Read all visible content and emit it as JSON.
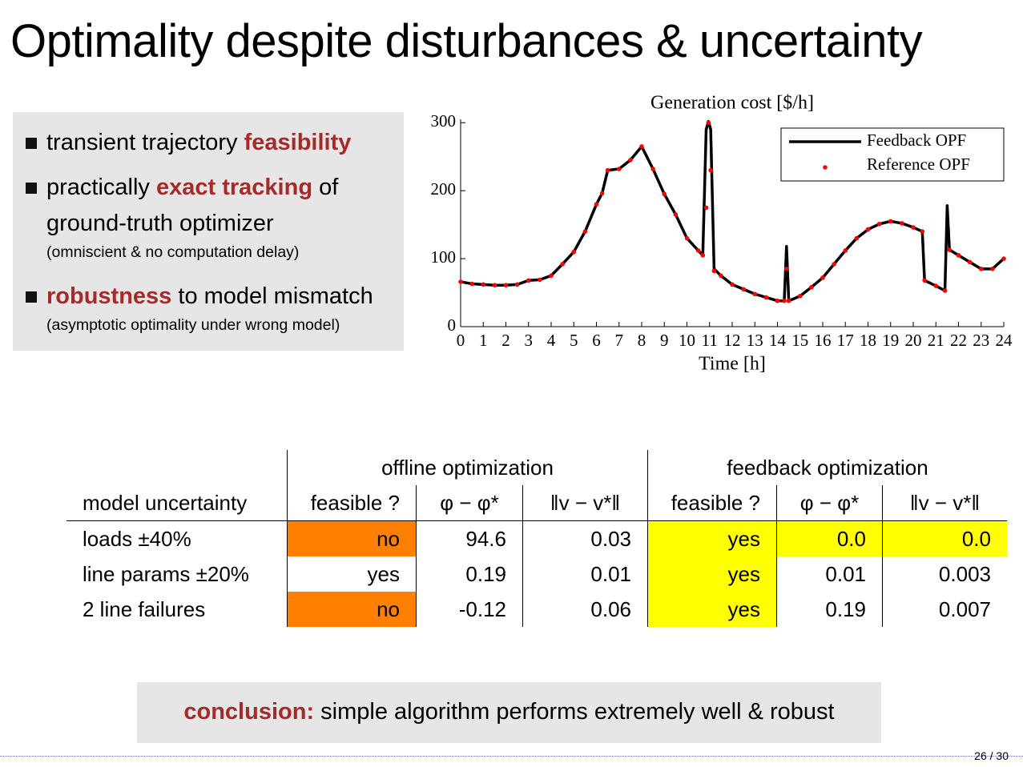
{
  "title": "Optimality despite disturbances & uncertainty",
  "bullets": [
    {
      "parts": [
        "transient trajectory ",
        "feasibility"
      ]
    },
    {
      "parts": [
        "practically ",
        "exact tracking",
        " of",
        "ground-truth optimizer"
      ],
      "note": "(omniscient & no computation delay)"
    },
    {
      "parts": [
        "robustness",
        " to model mismatch"
      ],
      "note": "(asymptotic optimality under wrong model)"
    }
  ],
  "chart_data": {
    "type": "line",
    "title": "Generation cost [$/h]",
    "xlabel": "Time [h]",
    "x": [
      0,
      0.5,
      1,
      1.5,
      2,
      2.5,
      3,
      3.5,
      4,
      4.5,
      5,
      5.5,
      6,
      6.25,
      6.5,
      7,
      7.5,
      8,
      8.5,
      9,
      9.5,
      10,
      10.5,
      10.7,
      10.85,
      10.95,
      11.05,
      11.2,
      11.5,
      12,
      12.5,
      13,
      13.5,
      14,
      14.3,
      14.4,
      14.5,
      15,
      15.5,
      16,
      16.5,
      17,
      17.5,
      18,
      18.5,
      19,
      19.5,
      20,
      20.4,
      20.5,
      21,
      21.4,
      21.5,
      21.6,
      22,
      22.5,
      23,
      23.5,
      24
    ],
    "series": [
      {
        "name": "Feedback OPF",
        "color": "#000000",
        "mode": "line",
        "values": [
          66,
          63,
          62,
          61,
          61,
          62,
          68,
          69,
          75,
          92,
          110,
          140,
          180,
          196,
          230,
          232,
          245,
          265,
          232,
          195,
          165,
          130,
          112,
          105,
          290,
          302,
          290,
          85,
          75,
          62,
          55,
          48,
          43,
          38,
          38,
          118,
          38,
          45,
          58,
          72,
          92,
          112,
          130,
          143,
          151,
          155,
          152,
          146,
          140,
          68,
          60,
          53,
          178,
          113,
          105,
          95,
          85,
          85,
          100
        ]
      },
      {
        "name": "Reference OPF",
        "color": "#ff0000",
        "mode": "markers",
        "values": [
          66,
          63,
          62,
          61,
          61,
          62,
          68,
          69,
          75,
          92,
          110,
          140,
          180,
          196,
          230,
          232,
          245,
          265,
          232,
          195,
          165,
          130,
          112,
          105,
          175,
          300,
          230,
          82,
          75,
          62,
          55,
          48,
          43,
          38,
          38,
          85,
          38,
          45,
          58,
          72,
          92,
          112,
          130,
          143,
          151,
          155,
          152,
          146,
          140,
          68,
          60,
          53,
          null,
          113,
          105,
          95,
          85,
          85,
          100
        ]
      }
    ],
    "xlim": [
      0,
      24
    ],
    "xticks": [
      0,
      1,
      2,
      3,
      4,
      5,
      6,
      7,
      8,
      9,
      10,
      11,
      12,
      13,
      14,
      15,
      16,
      17,
      18,
      19,
      20,
      21,
      22,
      23,
      24
    ],
    "ylim": [
      0,
      305
    ],
    "yticks": [
      0,
      100,
      200,
      300
    ],
    "legend": "upper right",
    "grid": false
  },
  "table": {
    "groups": [
      "offline optimization",
      "feedback optimization"
    ],
    "header": [
      "model uncertainty",
      "feasible ?",
      "φ − φ*",
      "‖v − v*‖",
      "feasible ?",
      "φ − φ*",
      "‖v − v*‖"
    ],
    "rows": [
      [
        "loads ±40%",
        "no",
        "94.6",
        "0.03",
        "yes",
        "0.0",
        "0.0"
      ],
      [
        "line params ±20%",
        "yes",
        "0.19",
        "0.01",
        "yes",
        "0.01",
        "0.003"
      ],
      [
        "2 line failures",
        "no",
        "-0.12",
        "0.06",
        "yes",
        "0.19",
        "0.007"
      ]
    ]
  },
  "conclusion": {
    "label": "conclusion:",
    "text": "simple algorithm performs extremely well & robust"
  },
  "page_number": "26 / 30"
}
